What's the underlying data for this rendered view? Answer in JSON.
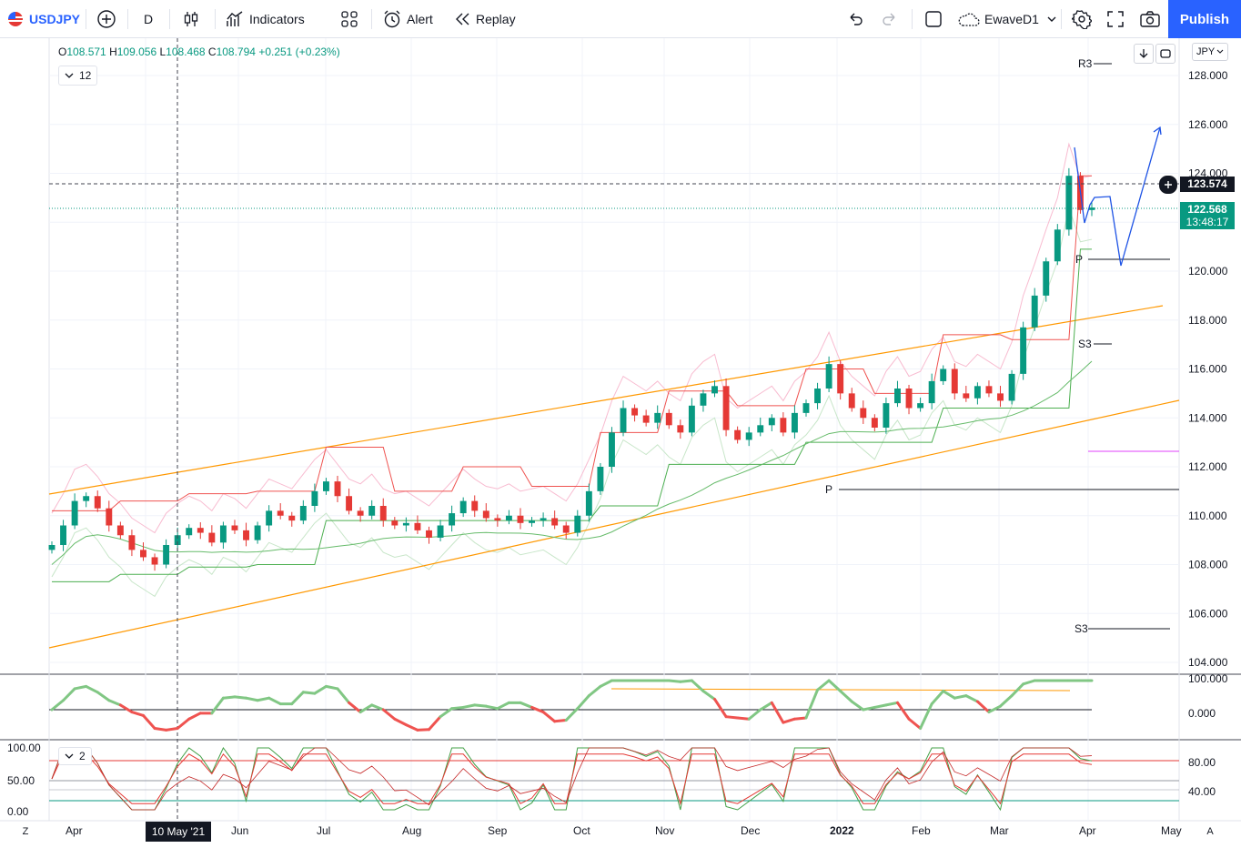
{
  "toolbar": {
    "symbol": "USDJPY",
    "interval": "D",
    "indicators": "Indicators",
    "alert": "Alert",
    "replay": "Replay",
    "layout_name": "EwaveD1",
    "publish": "Publish"
  },
  "legend": {
    "o_label": "O",
    "o": "108.571",
    "h_label": "H",
    "h": "109.056",
    "l_label": "L",
    "l": "108.468",
    "c_label": "C",
    "c": "108.794",
    "change": "+0.251 (+0.23%)",
    "indicator_count": "12"
  },
  "oscillator": {
    "indicator_count": "2"
  },
  "currency": "JPY",
  "price_axis": [
    "128.000",
    "126.000",
    "124.000",
    "122.000",
    "120.000",
    "118.000",
    "116.000",
    "114.000",
    "112.000",
    "110.000",
    "108.000",
    "106.000",
    "104.000"
  ],
  "crosshair_price": "123.574",
  "last_price": "122.568",
  "countdown": "13:48:17",
  "pivots": {
    "r3": "R3",
    "p": "P",
    "s3": "S3"
  },
  "indicator1_axis": [
    "100.000",
    "0.000"
  ],
  "indicator2_axis_left": [
    "100.00",
    "50.00",
    "0.00"
  ],
  "indicator2_axis_right": [
    "80.00",
    "40.00"
  ],
  "time_axis": [
    "Apr",
    "Jun",
    "Jul",
    "Aug",
    "Sep",
    "Oct",
    "Nov",
    "Dec",
    "2022",
    "Feb",
    "Mar",
    "Apr",
    "May"
  ],
  "crosshair_date": "10 May '21",
  "corner_left": "Z",
  "corner_right": "A",
  "colors": {
    "up": "#089981",
    "down": "#e53935",
    "accent": "#2962ff",
    "channel": "#ff9800"
  },
  "chart_data": {
    "type": "candlestick",
    "symbol": "USDJPY",
    "timeframe": "D",
    "ylim": [
      104,
      128
    ],
    "close": [
      108.8,
      109.6,
      110.6,
      110.8,
      110.3,
      109.6,
      109.2,
      108.6,
      108.3,
      108.0,
      108.8,
      109.2,
      109.5,
      109.3,
      108.9,
      109.6,
      109.4,
      109.0,
      109.6,
      110.2,
      110.0,
      109.8,
      110.4,
      111.0,
      111.4,
      110.8,
      110.2,
      110.0,
      110.4,
      109.8,
      109.6,
      109.7,
      109.4,
      109.1,
      109.6,
      110.1,
      110.6,
      110.2,
      109.9,
      109.8,
      110.0,
      109.7,
      109.8,
      109.9,
      109.6,
      109.3,
      110.0,
      111.0,
      112.0,
      113.4,
      114.4,
      114.1,
      113.8,
      114.2,
      113.7,
      113.4,
      114.5,
      115.0,
      115.3,
      113.5,
      113.1,
      113.4,
      113.7,
      114.0,
      113.4,
      114.2,
      114.6,
      115.2,
      116.2,
      115.0,
      114.4,
      114.0,
      113.6,
      114.6,
      115.2,
      114.4,
      114.6,
      115.5,
      116.0,
      115.0,
      114.8,
      115.3,
      115.0,
      114.7,
      115.8,
      117.7,
      119.0,
      120.4,
      121.7,
      123.9,
      122.5,
      122.6
    ]
  }
}
